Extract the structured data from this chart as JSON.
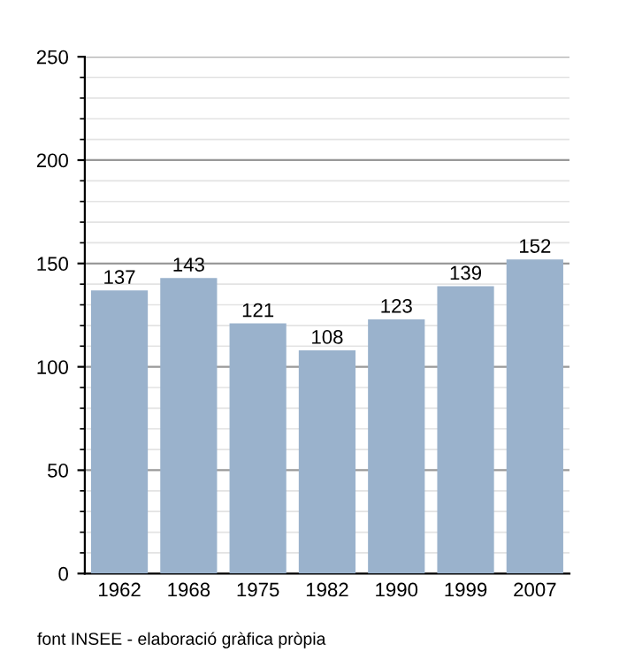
{
  "chart_data": {
    "type": "bar",
    "categories": [
      "1962",
      "1968",
      "1975",
      "1982",
      "1990",
      "1999",
      "2007"
    ],
    "values": [
      137,
      143,
      121,
      108,
      123,
      139,
      152
    ],
    "color": "#9ab2cc",
    "ylim": [
      0,
      250
    ],
    "yticks": [
      0,
      50,
      100,
      150,
      200,
      250
    ],
    "grid": "y",
    "data_labels": true,
    "annotations": [
      "font INSEE - elaboració gràfica pròpia"
    ]
  }
}
